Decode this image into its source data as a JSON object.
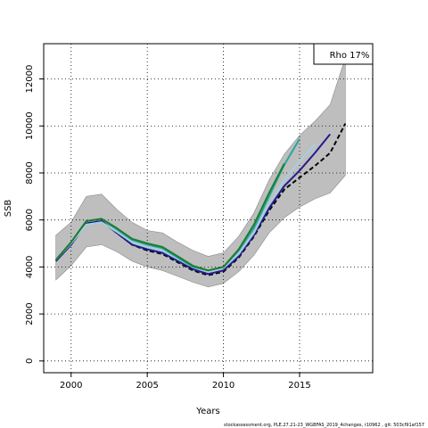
{
  "chart_data": {
    "type": "line",
    "xlabel": "Years",
    "ylabel": "SSB",
    "xlim": [
      1998.2,
      2019.8
    ],
    "ylim": [
      -500,
      13500
    ],
    "x_ticks": [
      2000,
      2005,
      2010,
      2015
    ],
    "x_tick_labels": [
      "2000",
      "2005",
      "2010",
      "2015"
    ],
    "y_ticks": [
      0,
      2000,
      4000,
      6000,
      8000,
      10000,
      12000
    ],
    "y_tick_labels": [
      "0",
      "2000",
      "4000",
      "6000",
      "8000",
      "10000",
      "12000"
    ],
    "grid": true,
    "legend_placement": "top-right",
    "legend_text": "Rho 17%",
    "footer": "stockassessment.org, PLE.27.21-23_WGBFAS_2019_4changes, r10962 , git: 503cf91af157",
    "confidence_band": {
      "color": "#bebebe",
      "x": [
        1999,
        2000,
        2001,
        2002,
        2003,
        2004,
        2005,
        2006,
        2007,
        2008,
        2009,
        2010,
        2011,
        2012,
        2013,
        2014,
        2015,
        2016,
        2017,
        2018
      ],
      "upper": [
        5350,
        5900,
        7000,
        7100,
        6450,
        5900,
        5550,
        5450,
        5050,
        4700,
        4450,
        4600,
        5300,
        6300,
        7700,
        8800,
        9600,
        10200,
        10900,
        12900
      ],
      "lower": [
        3450,
        4050,
        4850,
        4950,
        4650,
        4250,
        4000,
        3850,
        3600,
        3350,
        3150,
        3300,
        3800,
        4500,
        5450,
        6100,
        6550,
        6900,
        7150,
        7900
      ]
    },
    "series": [
      {
        "color": "#000000",
        "dashed": true,
        "x": [
          1999,
          2000,
          2001,
          2002,
          2003,
          2004,
          2005,
          2006,
          2007,
          2008,
          2009,
          2010,
          2011,
          2012,
          2013,
          2014,
          2015,
          2016,
          2017,
          2018
        ],
        "values": [
          4250,
          4950,
          5850,
          5950,
          5450,
          4950,
          4700,
          4550,
          4200,
          3850,
          3650,
          3800,
          4400,
          5300,
          6400,
          7300,
          7800,
          8300,
          8850,
          10100
        ]
      },
      {
        "color": "#221c8f",
        "x": [
          1999,
          2000,
          2001,
          2002,
          2003,
          2004,
          2005,
          2006,
          2007,
          2008,
          2009,
          2010,
          2011,
          2012,
          2013,
          2014,
          2015,
          2016,
          2017
        ],
        "values": [
          4250,
          4950,
          5850,
          5950,
          5450,
          4950,
          4750,
          4600,
          4250,
          3900,
          3700,
          3850,
          4450,
          5350,
          6500,
          7450,
          8100,
          8850,
          9650
        ]
      },
      {
        "color": "#a6cee3",
        "x": [
          1999,
          2000,
          2001,
          2002,
          2003,
          2004,
          2005,
          2006,
          2007,
          2008,
          2009,
          2010,
          2011,
          2012,
          2013,
          2014,
          2015,
          2016
        ],
        "values": [
          4300,
          5000,
          5800,
          5900,
          5500,
          5050,
          4850,
          4700,
          4350,
          4000,
          3800,
          3950,
          4550,
          5450,
          6700,
          7700,
          8500,
          9200
        ]
      },
      {
        "color": "#26a69a",
        "x": [
          1999,
          2000,
          2001,
          2002,
          2003,
          2004,
          2005,
          2006,
          2007,
          2008,
          2009,
          2010,
          2011,
          2012,
          2013,
          2014,
          2015
        ],
        "values": [
          4300,
          5050,
          5950,
          6050,
          5600,
          5150,
          4950,
          4800,
          4400,
          4000,
          3850,
          4000,
          4700,
          5650,
          7000,
          8350,
          9450
        ]
      },
      {
        "color": "#1b7d2e",
        "x": [
          1999,
          2000,
          2001,
          2002,
          2003,
          2004,
          2005,
          2006,
          2007,
          2008,
          2009,
          2010,
          2011,
          2012,
          2013,
          2014
        ],
        "values": [
          4300,
          5050,
          5950,
          6050,
          5650,
          5200,
          5000,
          4850,
          4450,
          4050,
          3850,
          4000,
          4750,
          5800,
          7150,
          8400
        ]
      }
    ]
  }
}
